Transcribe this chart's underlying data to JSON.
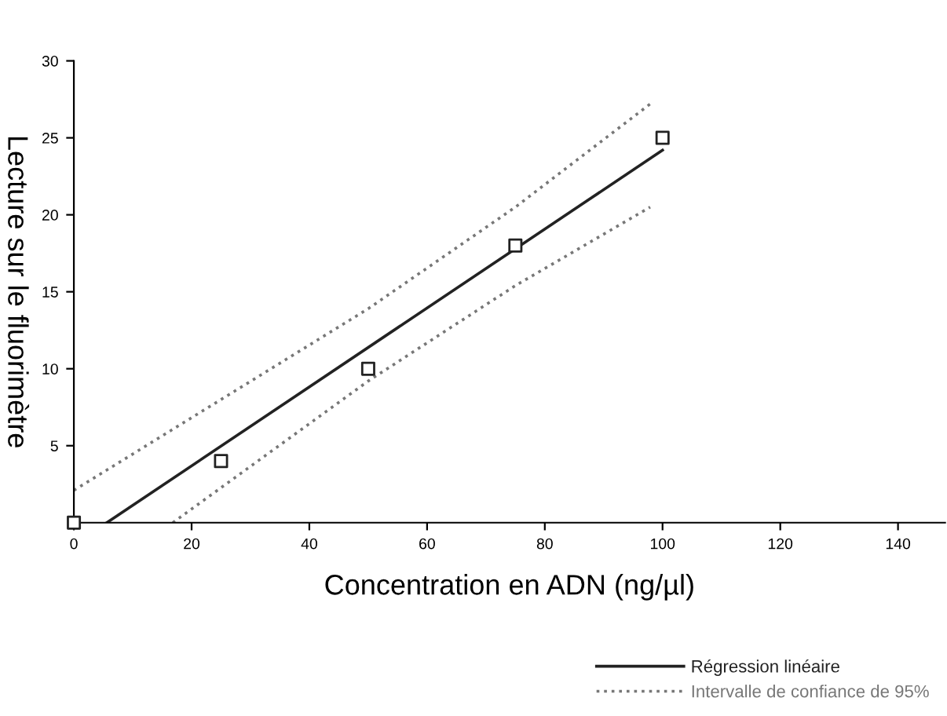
{
  "chart_data": {
    "type": "line",
    "xlabel": "Concentration en ADN (ng/µl)",
    "ylabel": "Lecture sur le fluorimètre",
    "xlim": [
      0,
      148
    ],
    "xticks": [
      0,
      20,
      40,
      60,
      80,
      100,
      120,
      140
    ],
    "ylim": [
      0,
      30
    ],
    "yticks": [
      5,
      10,
      15,
      20,
      25,
      30
    ],
    "grid": false,
    "legend": "bottom right",
    "series": [
      {
        "type": "scatter",
        "color": "#222222",
        "marker": "square",
        "x": [
          0,
          25,
          50,
          75,
          100
        ],
        "values": [
          0,
          4,
          10,
          18,
          25
        ]
      },
      {
        "type": "line",
        "name": "Régression linéaire",
        "color": "#222222",
        "line_style": "solid",
        "x": [
          5.6,
          100
        ],
        "values": [
          0,
          24.2
        ]
      },
      {
        "type": "line",
        "name": "Intervalle de confiance de 95%",
        "color": "#777777",
        "line_style": "dotted",
        "x": [
          0,
          25,
          50,
          75,
          97.9
        ],
        "values": [
          2.1,
          8.0,
          13.9,
          20.5,
          27.2
        ]
      },
      {
        "color": "#777777",
        "line_style": "dotted",
        "x": [
          16.8,
          50,
          75,
          97.9
        ],
        "values": [
          0,
          9.2,
          15.4,
          20.5
        ]
      }
    ]
  }
}
